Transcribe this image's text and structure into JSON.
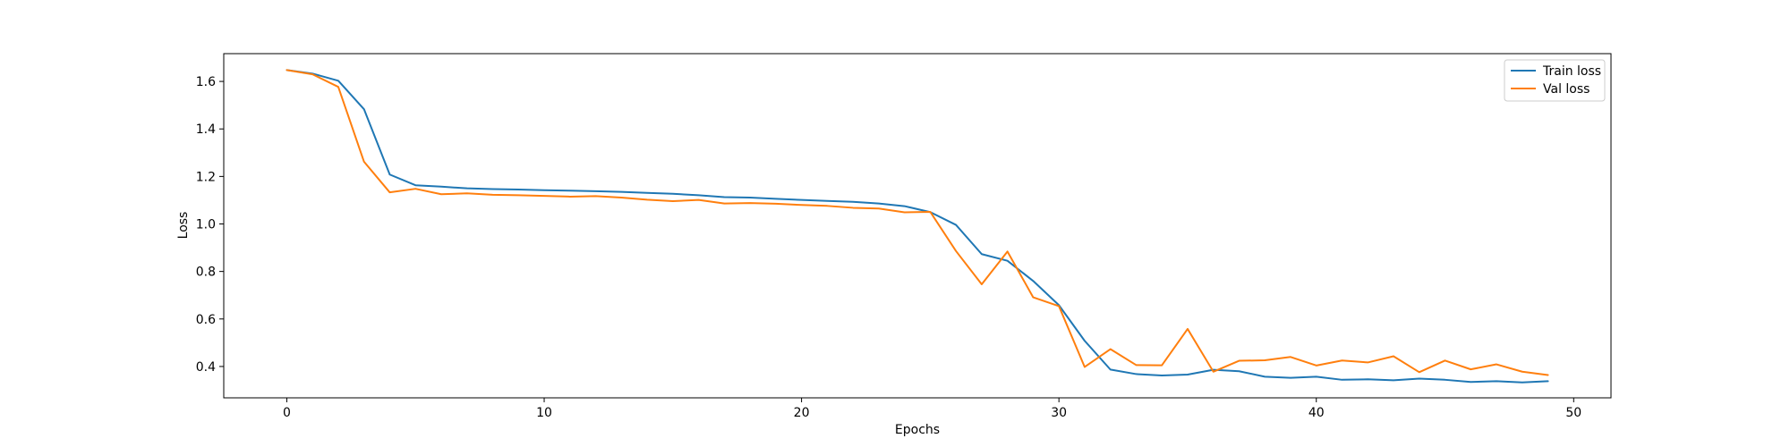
{
  "chart_data": {
    "type": "line",
    "title": "",
    "xlabel": "Epochs",
    "ylabel": "Loss",
    "xlim": [
      -2.45,
      51.45
    ],
    "ylim": [
      0.268,
      1.717
    ],
    "xticks": [
      0,
      10,
      20,
      30,
      40,
      50
    ],
    "yticks": [
      0.4,
      0.6,
      0.8,
      1.0,
      1.2,
      1.4,
      1.6
    ],
    "grid": false,
    "legend": {
      "position": "top-right"
    },
    "x": [
      0,
      1,
      2,
      3,
      4,
      5,
      6,
      7,
      8,
      9,
      10,
      11,
      12,
      13,
      14,
      15,
      16,
      17,
      18,
      19,
      20,
      21,
      22,
      23,
      24,
      25,
      26,
      27,
      28,
      29,
      30,
      31,
      32,
      33,
      34,
      35,
      36,
      37,
      38,
      39,
      40,
      41,
      42,
      43,
      44,
      45,
      46,
      47,
      48,
      49
    ],
    "series": [
      {
        "name": "Train loss",
        "color": "#1f77b4",
        "values": [
          1.648,
          1.633,
          1.603,
          1.483,
          1.208,
          1.163,
          1.157,
          1.15,
          1.147,
          1.145,
          1.142,
          1.14,
          1.138,
          1.135,
          1.131,
          1.127,
          1.121,
          1.113,
          1.111,
          1.106,
          1.101,
          1.097,
          1.093,
          1.086,
          1.075,
          1.05,
          0.996,
          0.873,
          0.845,
          0.76,
          0.658,
          0.508,
          0.387,
          0.368,
          0.362,
          0.366,
          0.386,
          0.38,
          0.357,
          0.352,
          0.357,
          0.344,
          0.346,
          0.342,
          0.349,
          0.344,
          0.335,
          0.338,
          0.333,
          0.338
        ]
      },
      {
        "name": "Val loss",
        "color": "#ff7f0e",
        "values": [
          1.648,
          1.63,
          1.577,
          1.262,
          1.133,
          1.148,
          1.125,
          1.129,
          1.123,
          1.121,
          1.118,
          1.115,
          1.117,
          1.111,
          1.102,
          1.096,
          1.101,
          1.086,
          1.088,
          1.085,
          1.08,
          1.076,
          1.068,
          1.065,
          1.049,
          1.051,
          0.886,
          0.746,
          0.884,
          0.691,
          0.654,
          0.398,
          0.473,
          0.406,
          0.405,
          0.558,
          0.378,
          0.424,
          0.426,
          0.44,
          0.404,
          0.425,
          0.417,
          0.443,
          0.376,
          0.425,
          0.388,
          0.409,
          0.378,
          0.364
        ]
      }
    ]
  }
}
